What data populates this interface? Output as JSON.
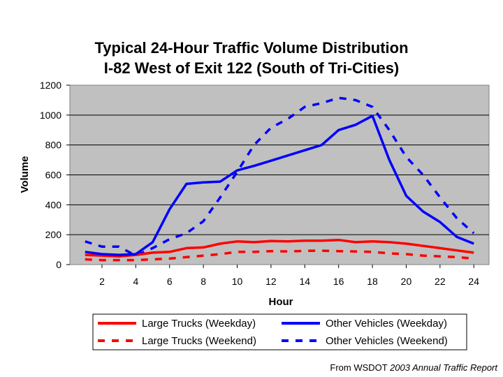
{
  "source": {
    "prefix": "From WSDOT ",
    "publication": "2003 Annual Traffic Report"
  },
  "chart_data": {
    "type": "line",
    "title": [
      "Typical 24-Hour Traffic Volume Distribution",
      "I-82 West of Exit 122 (South of Tri-Cities)"
    ],
    "xlabel": "Hour",
    "ylabel": "Volume",
    "x": [
      1,
      2,
      3,
      4,
      5,
      6,
      7,
      8,
      9,
      10,
      11,
      12,
      13,
      14,
      15,
      16,
      17,
      18,
      19,
      20,
      21,
      22,
      23,
      24
    ],
    "x_ticks": [
      2,
      4,
      6,
      8,
      10,
      12,
      14,
      16,
      18,
      20,
      22,
      24
    ],
    "xlim": [
      0.1,
      24.9
    ],
    "ylim": [
      0,
      1200
    ],
    "y_ticks": [
      0,
      200,
      400,
      600,
      800,
      1000,
      1200
    ],
    "grid": "horizontal",
    "plot_background": "#c0c0c0",
    "legend_position": "bottom",
    "series": [
      {
        "name": "Large Trucks (Weekday)",
        "color": "#ff0000",
        "dash": "solid",
        "values": [
          65,
          60,
          55,
          65,
          80,
          85,
          110,
          115,
          140,
          155,
          150,
          158,
          155,
          160,
          160,
          165,
          150,
          155,
          150,
          140,
          125,
          110,
          95,
          80
        ]
      },
      {
        "name": "Other Vehicles (Weekday)",
        "color": "#0000ff",
        "dash": "solid",
        "values": [
          85,
          70,
          65,
          70,
          150,
          370,
          540,
          550,
          555,
          630,
          660,
          695,
          730,
          765,
          800,
          900,
          935,
          995,
          700,
          460,
          355,
          285,
          185,
          140
        ]
      },
      {
        "name": "Large Trucks (Weekend)",
        "color": "#ff0000",
        "dash": "dashed",
        "values": [
          35,
          30,
          30,
          30,
          35,
          40,
          50,
          60,
          70,
          85,
          85,
          90,
          88,
          92,
          93,
          90,
          88,
          85,
          75,
          70,
          60,
          55,
          50,
          40
        ]
      },
      {
        "name": "Other Vehicles (Weekend)",
        "color": "#0000ff",
        "dash": "dashed",
        "values": [
          155,
          120,
          120,
          60,
          110,
          170,
          210,
          290,
          450,
          620,
          800,
          915,
          975,
          1055,
          1080,
          1115,
          1100,
          1055,
          900,
          720,
          600,
          450,
          310,
          210
        ]
      }
    ]
  }
}
